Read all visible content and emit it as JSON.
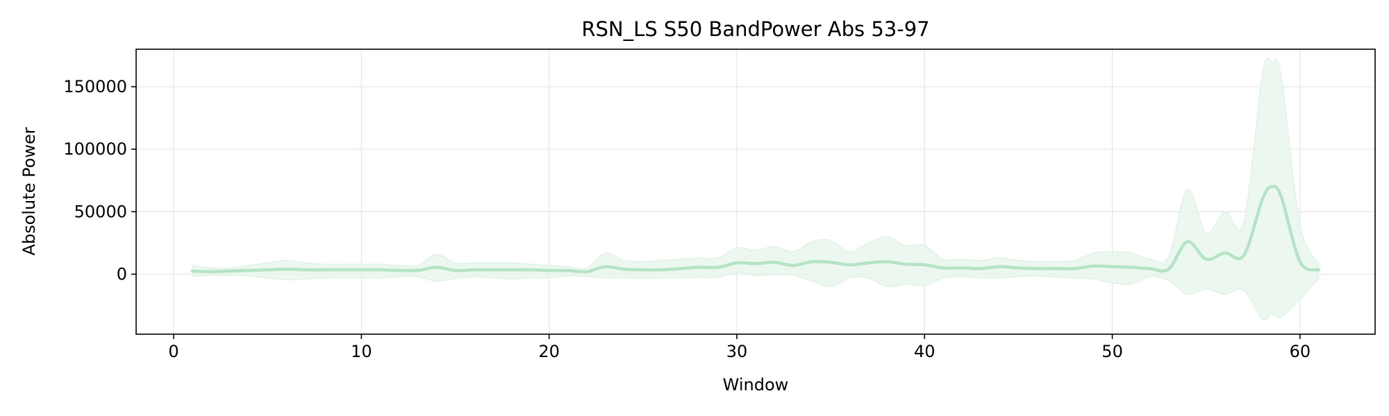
{
  "chart_data": {
    "type": "line",
    "title": "RSN_LS S50 BandPower Abs 53-97",
    "xlabel": "Window",
    "ylabel": "Absolute Power",
    "xlim": [
      -2,
      64
    ],
    "ylim": [
      -48000,
      180000
    ],
    "x_ticks": [
      0,
      10,
      20,
      30,
      40,
      50,
      60
    ],
    "x_tick_labels": [
      "0",
      "10",
      "20",
      "30",
      "40",
      "50",
      "60"
    ],
    "y_ticks": [
      0,
      50000,
      100000,
      150000
    ],
    "y_tick_labels": [
      "0",
      "50000",
      "100000",
      "150000"
    ],
    "grid": true,
    "legend": false,
    "colors": {
      "line": "#b5e3c5",
      "band": "#e8f6ec",
      "band_edge": "#d8efdf",
      "grid": "#e6e6e6",
      "axis": "#000000"
    },
    "series": [
      {
        "x": [
          1,
          2,
          3,
          4,
          5,
          6,
          7,
          8,
          9,
          10,
          11,
          12,
          13,
          14,
          15,
          16,
          17,
          18,
          19,
          20,
          21,
          22,
          23,
          24,
          25,
          26,
          27,
          28,
          29,
          30,
          31,
          32,
          33,
          34,
          35,
          36,
          37,
          38,
          39,
          40,
          41,
          42,
          43,
          44,
          45,
          46,
          47,
          48,
          49,
          50,
          51,
          52,
          53,
          54,
          55,
          56,
          57,
          58,
          58.5,
          59,
          60,
          61
        ],
        "mean": [
          2500,
          2000,
          2500,
          3000,
          3500,
          4000,
          3500,
          3500,
          3500,
          3500,
          3500,
          3000,
          3000,
          5500,
          3000,
          3500,
          3500,
          3500,
          3500,
          3000,
          3000,
          2000,
          6000,
          4000,
          3500,
          3500,
          4500,
          5500,
          5500,
          9000,
          8500,
          9500,
          7000,
          10000,
          9500,
          7500,
          9000,
          10000,
          8000,
          7500,
          5000,
          5000,
          4500,
          6000,
          5000,
          4500,
          4500,
          4500,
          6500,
          6000,
          5500,
          4500,
          4000,
          26000,
          12000,
          17000,
          15000,
          60000,
          70000,
          62000,
          10000,
          3500
        ],
        "upper": [
          7000,
          5000,
          5000,
          7000,
          9000,
          11000,
          9000,
          8000,
          8000,
          8000,
          8000,
          7000,
          7000,
          16000,
          9000,
          9000,
          9000,
          9000,
          8000,
          7000,
          6000,
          5000,
          17000,
          11000,
          10000,
          11000,
          12000,
          13000,
          13000,
          21000,
          19000,
          22000,
          18000,
          26000,
          27000,
          18000,
          25000,
          30000,
          23000,
          23000,
          12000,
          12000,
          11000,
          13000,
          11000,
          10000,
          10000,
          11000,
          17000,
          18000,
          17000,
          12000,
          14000,
          68000,
          33000,
          50000,
          42000,
          160000,
          170000,
          158000,
          40000,
          8000
        ],
        "lower": [
          -2000,
          -1000,
          -1000,
          -1500,
          -3000,
          -4500,
          -4000,
          -3000,
          -3000,
          -3000,
          -3000,
          -2000,
          -2000,
          -5500,
          -3500,
          -2000,
          -3000,
          -4000,
          -3000,
          -3000,
          -1500,
          -2000,
          -3000,
          -3000,
          -3500,
          -3000,
          -3000,
          -2500,
          -2500,
          1500,
          -1000,
          -500,
          -1000,
          -5500,
          -10000,
          -3000,
          -3000,
          -10000,
          -8000,
          -9000,
          -3000,
          -2000,
          -3000,
          -3000,
          -2000,
          -1500,
          -2500,
          -3000,
          -4000,
          -7000,
          -8000,
          -2000,
          -5000,
          -16000,
          -12000,
          -16000,
          -13000,
          -36000,
          -32000,
          -34000,
          -20000,
          -3000
        ]
      }
    ]
  }
}
